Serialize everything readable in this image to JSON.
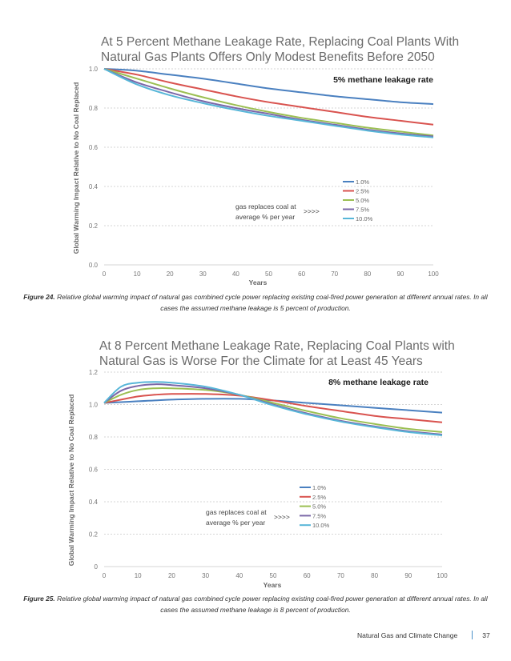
{
  "colors": {
    "s10": "#4a80c0",
    "s25": "#d9534f",
    "s50": "#9bbf52",
    "s75": "#7b67a8",
    "s100": "#57b6d8"
  },
  "chart_data": [
    {
      "type": "line",
      "title_lines": [
        "At 5 Percent Methane Leakage Rate, Replacing Coal Plants With",
        "Natural Gas Plants Offers Only Modest Benefits Before 2050"
      ],
      "rate_label": "5% methane leakage rate",
      "xlabel": "Years",
      "ylabel": "Global Warming Impact Relative to No Coal Replaced",
      "xlim": [
        0,
        100
      ],
      "ylim": [
        0,
        1.0
      ],
      "xticks": [
        "0",
        "10",
        "20",
        "30",
        "40",
        "50",
        "60",
        "70",
        "80",
        "90",
        "100"
      ],
      "yticks": [
        "0.0",
        "0.2",
        "0.4",
        "0.6",
        "0.8",
        "1.0"
      ],
      "legend_position": "bottom-right",
      "annotation": {
        "lines": [
          "gas replaces coal at",
          "average % per year"
        ],
        "arrow": ">>>>"
      },
      "x": [
        0,
        10,
        20,
        30,
        40,
        50,
        60,
        70,
        80,
        90,
        100
      ],
      "series": [
        {
          "name": "1.0%",
          "color_key": "s10",
          "values": [
            1.0,
            0.99,
            0.97,
            0.95,
            0.925,
            0.9,
            0.88,
            0.86,
            0.845,
            0.83,
            0.82
          ]
        },
        {
          "name": "2.5%",
          "color_key": "s25",
          "values": [
            1.0,
            0.97,
            0.93,
            0.895,
            0.86,
            0.83,
            0.805,
            0.78,
            0.755,
            0.735,
            0.715
          ]
        },
        {
          "name": "5.0%",
          "color_key": "s50",
          "values": [
            1.0,
            0.95,
            0.9,
            0.855,
            0.815,
            0.78,
            0.75,
            0.725,
            0.7,
            0.68,
            0.66
          ]
        },
        {
          "name": "7.5%",
          "color_key": "s75",
          "values": [
            1.0,
            0.93,
            0.88,
            0.835,
            0.8,
            0.77,
            0.74,
            0.715,
            0.69,
            0.67,
            0.655
          ]
        },
        {
          "name": "10.0%",
          "color_key": "s100",
          "values": [
            1.0,
            0.92,
            0.865,
            0.825,
            0.79,
            0.76,
            0.735,
            0.71,
            0.685,
            0.665,
            0.65
          ]
        }
      ]
    },
    {
      "type": "line",
      "title_lines": [
        "At 8 Percent Methane Leakage Rate, Replacing Coal Plants with",
        "Natural Gas is Worse For the Climate for at Least 45 Years"
      ],
      "rate_label": "8% methane leakage rate",
      "xlabel": "Years",
      "ylabel": "Global Warming Impact Relative to No Coal Replaced",
      "xlim": [
        0,
        100
      ],
      "ylim": [
        0,
        1.2
      ],
      "xticks": [
        "0",
        "10",
        "20",
        "30",
        "40",
        "50",
        "60",
        "70",
        "80",
        "90",
        "100"
      ],
      "yticks": [
        "0",
        "0.2",
        "0.4",
        "0.6",
        "0.8",
        "1.0",
        "1.2"
      ],
      "legend_position": "bottom-right",
      "annotation": {
        "lines": [
          "gas replaces coal at",
          "average % per year"
        ],
        "arrow": ">>>>"
      },
      "x": [
        0,
        5,
        10,
        15,
        20,
        30,
        40,
        50,
        60,
        70,
        80,
        90,
        100
      ],
      "series": [
        {
          "name": "1.0%",
          "color_key": "s10",
          "values": [
            1.01,
            1.015,
            1.02,
            1.025,
            1.03,
            1.035,
            1.035,
            1.025,
            1.01,
            0.995,
            0.98,
            0.965,
            0.95
          ]
        },
        {
          "name": "2.5%",
          "color_key": "s25",
          "values": [
            1.01,
            1.03,
            1.05,
            1.06,
            1.065,
            1.065,
            1.055,
            1.025,
            0.99,
            0.96,
            0.93,
            0.91,
            0.89
          ]
        },
        {
          "name": "5.0%",
          "color_key": "s50",
          "values": [
            1.01,
            1.06,
            1.09,
            1.1,
            1.1,
            1.09,
            1.06,
            1.01,
            0.96,
            0.915,
            0.88,
            0.85,
            0.83
          ]
        },
        {
          "name": "7.5%",
          "color_key": "s75",
          "values": [
            1.01,
            1.085,
            1.115,
            1.125,
            1.12,
            1.1,
            1.06,
            1.0,
            0.945,
            0.9,
            0.865,
            0.835,
            0.815
          ]
        },
        {
          "name": "10.0%",
          "color_key": "s100",
          "values": [
            1.01,
            1.11,
            1.135,
            1.14,
            1.135,
            1.11,
            1.06,
            0.995,
            0.94,
            0.895,
            0.86,
            0.83,
            0.81
          ]
        }
      ]
    }
  ],
  "captions": [
    {
      "label": "Figure 24.",
      "text": "Relative global warming impact of natural gas combined cycle power replacing existing coal-fired power generation at different annual rates.  In all cases the assumed methane leakage is 5 percent of production."
    },
    {
      "label": "Figure 25.",
      "text": "Relative global warming impact of natural gas combined cycle power replacing existing coal-fired power generation at different annual rates.  In all cases the assumed methane leakage is 8 percent of production."
    }
  ],
  "footer": {
    "title": "Natural Gas and Climate Change",
    "page": "37"
  }
}
